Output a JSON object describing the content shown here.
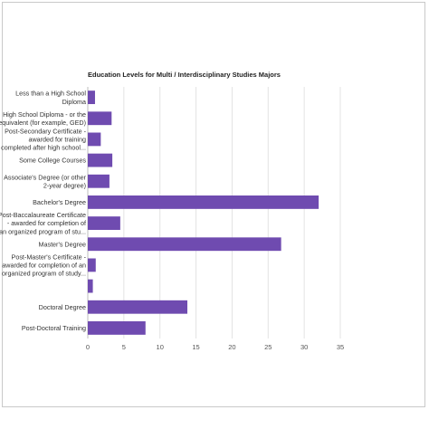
{
  "chart_data": {
    "type": "bar",
    "orientation": "horizontal",
    "title": "Education Levels for Multi / Interdisciplinary Studies Majors",
    "xlabel": "",
    "ylabel": "",
    "xlim": [
      0,
      35
    ],
    "xticks": [
      "0",
      "5",
      "10",
      "15",
      "20",
      "25",
      "30",
      "35"
    ],
    "grid": true,
    "bar_color": "#6f4bb0",
    "categories": [
      [
        "Less than a High School",
        "Diploma"
      ],
      [
        "High School Diploma - or the",
        "equivalent (for example, GED)"
      ],
      [
        "Post-Secondary Certificate -",
        "awarded for training",
        "completed after high school..."
      ],
      [
        "Some College Courses"
      ],
      [
        "Associate's Degree (or other",
        "2-year degree)"
      ],
      [
        "Bachelor's Degree"
      ],
      [
        "Post-Baccalaureate Certificate",
        "- awarded for completion of",
        "an organized program of stu..."
      ],
      [
        "Master's Degree"
      ],
      [
        "Post-Master's Certificate -",
        "awarded for completion of an",
        "organized program of study..."
      ],
      [],
      [
        "Doctoral Degree"
      ],
      [
        "Post-Doctoral Training"
      ]
    ],
    "values": [
      1,
      3.3,
      1.8,
      3.4,
      3,
      32,
      4.5,
      26.8,
      1.1,
      0.7,
      13.8,
      8
    ]
  }
}
